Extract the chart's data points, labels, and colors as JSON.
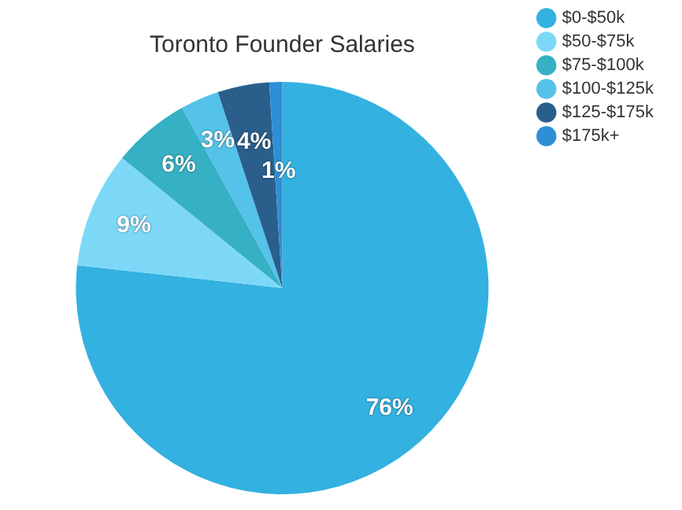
{
  "chart_data": {
    "type": "pie",
    "title": "Toronto Founder Salaries",
    "categories": [
      "$0-$50k",
      "$50-$75k",
      "$75-$100k",
      "$100-$125k",
      "$125-$175k",
      "$175k+"
    ],
    "values": [
      76,
      9,
      6,
      3,
      4,
      1
    ],
    "value_labels": [
      "76%",
      "9%",
      "6%",
      "3%",
      "4%",
      "1%"
    ],
    "colors": [
      "#33b1e0",
      "#7dd8f8",
      "#36b0c4",
      "#55c2ea",
      "#2a5f8c",
      "#2e8fd6"
    ],
    "legend": "top right"
  }
}
